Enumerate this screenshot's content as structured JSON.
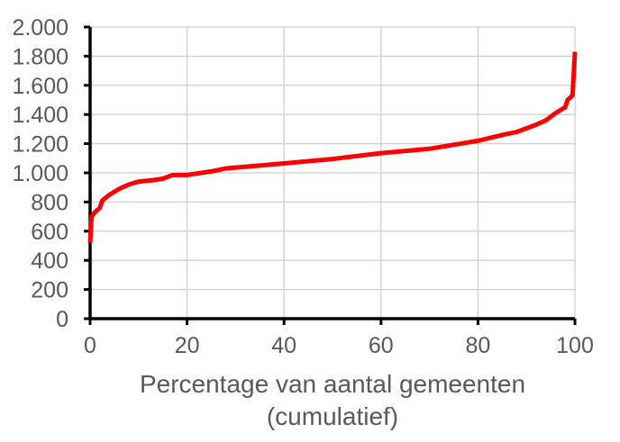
{
  "chart_data": {
    "type": "line",
    "title": "",
    "xlabel": "Percentage van aantal gemeenten",
    "xlabel_line2": "(cumulatief)",
    "ylabel": "",
    "xlim": [
      0,
      100
    ],
    "ylim": [
      0,
      2000
    ],
    "x_ticks": [
      0,
      20,
      40,
      60,
      80,
      100
    ],
    "x_tick_labels": [
      "0",
      "20",
      "40",
      "60",
      "80",
      "100"
    ],
    "y_ticks": [
      0,
      200,
      400,
      600,
      800,
      1000,
      1200,
      1400,
      1600,
      1800,
      2000
    ],
    "y_tick_labels": [
      "0",
      "200",
      "400",
      "600",
      "800",
      "1.000",
      "1.200",
      "1.400",
      "1.600",
      "1.800",
      "2.000"
    ],
    "grid": true,
    "series_color": "#ff0000",
    "series": [
      {
        "x": [
          0,
          0.3,
          1,
          2,
          2.5,
          4,
          6,
          8,
          10,
          13,
          15,
          17,
          20,
          25,
          28,
          35,
          40,
          50,
          60,
          70,
          80,
          85,
          88,
          92,
          94,
          96,
          98,
          98.5,
          99.5,
          100
        ],
        "values": [
          520,
          700,
          730,
          760,
          810,
          850,
          890,
          920,
          940,
          950,
          960,
          985,
          985,
          1010,
          1030,
          1050,
          1065,
          1095,
          1135,
          1165,
          1220,
          1260,
          1280,
          1330,
          1360,
          1410,
          1450,
          1500,
          1530,
          1830
        ]
      }
    ]
  }
}
